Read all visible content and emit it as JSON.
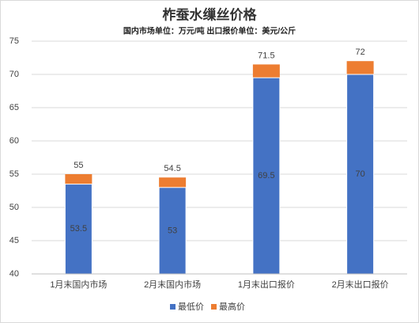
{
  "chart_data": {
    "type": "bar",
    "title": "柞蚕水缫丝价格",
    "subtitle": "国内市场单位：万元/吨  出口报价单位：美元/公斤",
    "categories": [
      "1月末国内市场",
      "2月末国内市场",
      "1月末出口报价",
      "2月末出口报价"
    ],
    "series": [
      {
        "name": "最高价",
        "color": "#ed7d31",
        "values": [
          55,
          54.5,
          71.5,
          72
        ]
      },
      {
        "name": "最低价",
        "color": "#4472c4",
        "values": [
          53.5,
          53,
          69.5,
          70
        ]
      }
    ],
    "ylim": [
      40,
      75
    ],
    "yticks": [
      40,
      45,
      50,
      55,
      60,
      65,
      70,
      75
    ],
    "grid": true,
    "legend": "bottom"
  }
}
